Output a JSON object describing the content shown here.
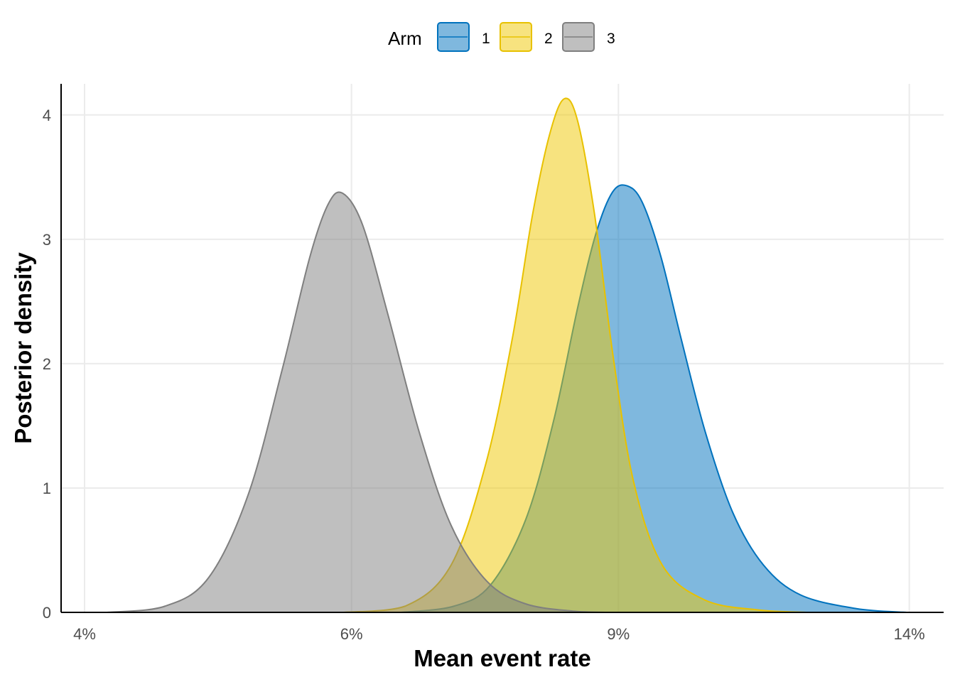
{
  "chart_data": {
    "type": "area",
    "subtype": "density",
    "title": "",
    "xlabel": "Mean event rate",
    "ylabel": "Posterior density",
    "x_scale": "log",
    "x_ticks": [
      0.04,
      0.06,
      0.09,
      0.14
    ],
    "x_tick_labels": [
      "4%",
      "6%",
      "9%",
      "14%"
    ],
    "xlim": [
      0.0386,
      0.1475
    ],
    "y_ticks": [
      0,
      1,
      2,
      3,
      4
    ],
    "y_tick_labels": [
      "0",
      "1",
      "2",
      "3",
      "4"
    ],
    "ylim": [
      0,
      4.25
    ],
    "grid": true,
    "legend": {
      "title": "Arm",
      "position": "top",
      "entries": [
        "1",
        "2",
        "3"
      ]
    },
    "series": [
      {
        "name": "1",
        "color": "#0072BD",
        "fill": "#0072BD",
        "fill_opacity": 0.5,
        "x": [
          0.0647,
          0.0701,
          0.0741,
          0.0782,
          0.0816,
          0.0846,
          0.087,
          0.0892,
          0.0912,
          0.0933,
          0.096,
          0.099,
          0.1027,
          0.1071,
          0.1122,
          0.1187,
          0.1292,
          0.1394
        ],
        "y": [
          0.0,
          0.05,
          0.22,
          0.75,
          1.55,
          2.45,
          3.05,
          3.38,
          3.43,
          3.3,
          2.86,
          2.2,
          1.45,
          0.8,
          0.38,
          0.14,
          0.03,
          0.0
        ]
      },
      {
        "name": "2",
        "color": "#E8C100",
        "fill": "#EFC700",
        "fill_opacity": 0.5,
        "x": [
          0.0592,
          0.0651,
          0.0698,
          0.0736,
          0.0766,
          0.079,
          0.0811,
          0.0829,
          0.0846,
          0.0868,
          0.0893,
          0.0921,
          0.0962,
          0.1026,
          0.1112,
          0.12
        ],
        "y": [
          0.0,
          0.05,
          0.38,
          1.2,
          2.2,
          3.2,
          3.85,
          4.13,
          3.95,
          3.2,
          2.05,
          1.05,
          0.38,
          0.1,
          0.02,
          0.0
        ]
      },
      {
        "name": "3",
        "color": "#7F7F7F",
        "fill": "#808080",
        "fill_opacity": 0.5,
        "x": [
          0.0414,
          0.0452,
          0.0483,
          0.0513,
          0.054,
          0.0563,
          0.0579,
          0.0592,
          0.061,
          0.0634,
          0.0665,
          0.0698,
          0.0737,
          0.0781,
          0.084,
          0.0885
        ],
        "y": [
          0.0,
          0.05,
          0.28,
          0.95,
          1.95,
          2.85,
          3.28,
          3.37,
          3.12,
          2.4,
          1.45,
          0.7,
          0.25,
          0.07,
          0.01,
          0.0
        ]
      }
    ]
  }
}
